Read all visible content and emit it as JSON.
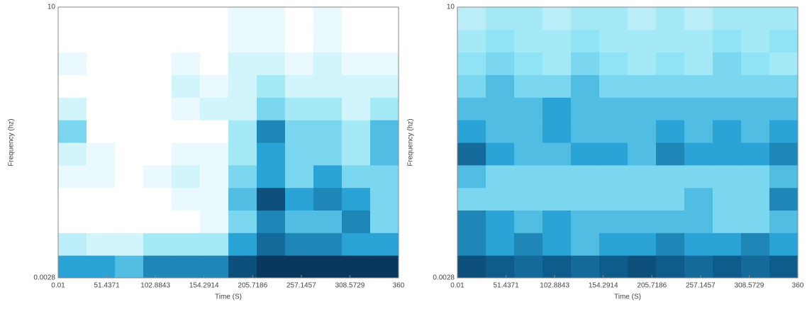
{
  "chart_data": [
    {
      "type": "heatmap",
      "xlabel": "Time (S)",
      "ylabel": "Frequency (hz)",
      "xlim": [
        0.01,
        360
      ],
      "xticks": [
        0.01,
        51.4371,
        102.8843,
        154.2914,
        205.7186,
        257.1457,
        308.5729,
        360
      ],
      "ylim": [
        0.0028,
        10
      ],
      "yticks": [
        0.0028,
        10
      ],
      "log_y": true,
      "colormap": [
        "#ffffff",
        "#8fe3f5",
        "#2aa3d6",
        "#0f5c8c",
        "#071f3d"
      ],
      "z": [
        [
          0.5,
          0.5,
          0.4,
          0.6,
          0.6,
          0.6,
          0.8,
          0.9,
          0.9,
          0.9,
          0.9,
          0.9
        ],
        [
          0.15,
          0.1,
          0.1,
          0.2,
          0.2,
          0.2,
          0.5,
          0.7,
          0.6,
          0.6,
          0.5,
          0.5
        ],
        [
          0,
          0,
          0,
          0,
          0,
          0.05,
          0.3,
          0.6,
          0.4,
          0.4,
          0.6,
          0.3
        ],
        [
          0,
          0,
          0,
          0,
          0.05,
          0.05,
          0.4,
          0.8,
          0.5,
          0.6,
          0.5,
          0.3
        ],
        [
          0.05,
          0.05,
          0,
          0.05,
          0.1,
          0.05,
          0.3,
          0.5,
          0.3,
          0.5,
          0.3,
          0.3
        ],
        [
          0.1,
          0.05,
          0,
          0,
          0.05,
          0.05,
          0.2,
          0.5,
          0.3,
          0.3,
          0.2,
          0.4
        ],
        [
          0.3,
          0,
          0,
          0,
          0,
          0,
          0.2,
          0.6,
          0.3,
          0.3,
          0.2,
          0.4
        ],
        [
          0.1,
          0,
          0,
          0,
          0.05,
          0.1,
          0.1,
          0.3,
          0.2,
          0.2,
          0.1,
          0.2
        ],
        [
          0,
          0,
          0,
          0,
          0.1,
          0.05,
          0.1,
          0.2,
          0.1,
          0.1,
          0.1,
          0.1
        ],
        [
          0.05,
          0,
          0,
          0,
          0.05,
          0,
          0.1,
          0.1,
          0.05,
          0.1,
          0.05,
          0.05
        ],
        [
          0,
          0,
          0,
          0,
          0,
          0,
          0.05,
          0.05,
          0,
          0.05,
          0,
          0
        ],
        [
          0,
          0,
          0,
          0,
          0,
          0,
          0.05,
          0.05,
          0,
          0.05,
          0,
          0
        ]
      ]
    },
    {
      "type": "heatmap",
      "xlabel": "Time (S)",
      "ylabel": "Frequency (hz)",
      "xlim": [
        0.01,
        360
      ],
      "xticks": [
        0.01,
        51.4371,
        102.8843,
        154.2914,
        205.7186,
        257.1457,
        308.5729,
        360
      ],
      "ylim": [
        0.0028,
        10
      ],
      "yticks": [
        0.0028,
        10
      ],
      "log_y": true,
      "colormap": [
        "#ffffff",
        "#8fe3f5",
        "#2aa3d6",
        "#0f5c8c",
        "#071f3d"
      ],
      "z": [
        [
          0.8,
          0.75,
          0.7,
          0.75,
          0.7,
          0.75,
          0.8,
          0.75,
          0.7,
          0.75,
          0.7,
          0.75
        ],
        [
          0.6,
          0.5,
          0.6,
          0.5,
          0.4,
          0.5,
          0.5,
          0.6,
          0.5,
          0.5,
          0.6,
          0.5
        ],
        [
          0.6,
          0.5,
          0.4,
          0.5,
          0.4,
          0.4,
          0.4,
          0.4,
          0.4,
          0.3,
          0.3,
          0.4
        ],
        [
          0.3,
          0.3,
          0.3,
          0.3,
          0.3,
          0.3,
          0.3,
          0.3,
          0.4,
          0.3,
          0.3,
          0.6
        ],
        [
          0.4,
          0.3,
          0.3,
          0.3,
          0.3,
          0.3,
          0.3,
          0.3,
          0.3,
          0.3,
          0.3,
          0.4
        ],
        [
          0.7,
          0.5,
          0.4,
          0.4,
          0.5,
          0.5,
          0.4,
          0.6,
          0.5,
          0.5,
          0.5,
          0.6
        ],
        [
          0.5,
          0.4,
          0.4,
          0.5,
          0.4,
          0.4,
          0.4,
          0.5,
          0.4,
          0.5,
          0.4,
          0.5
        ],
        [
          0.4,
          0.4,
          0.4,
          0.5,
          0.4,
          0.4,
          0.4,
          0.4,
          0.4,
          0.4,
          0.4,
          0.4
        ],
        [
          0.3,
          0.4,
          0.3,
          0.3,
          0.4,
          0.3,
          0.3,
          0.3,
          0.3,
          0.3,
          0.3,
          0.3
        ],
        [
          0.25,
          0.3,
          0.25,
          0.2,
          0.3,
          0.25,
          0.2,
          0.25,
          0.2,
          0.3,
          0.25,
          0.2
        ],
        [
          0.2,
          0.25,
          0.2,
          0.2,
          0.25,
          0.2,
          0.2,
          0.2,
          0.2,
          0.25,
          0.2,
          0.25
        ],
        [
          0.15,
          0.2,
          0.2,
          0.15,
          0.2,
          0.2,
          0.15,
          0.2,
          0.15,
          0.2,
          0.2,
          0.2
        ]
      ]
    }
  ]
}
